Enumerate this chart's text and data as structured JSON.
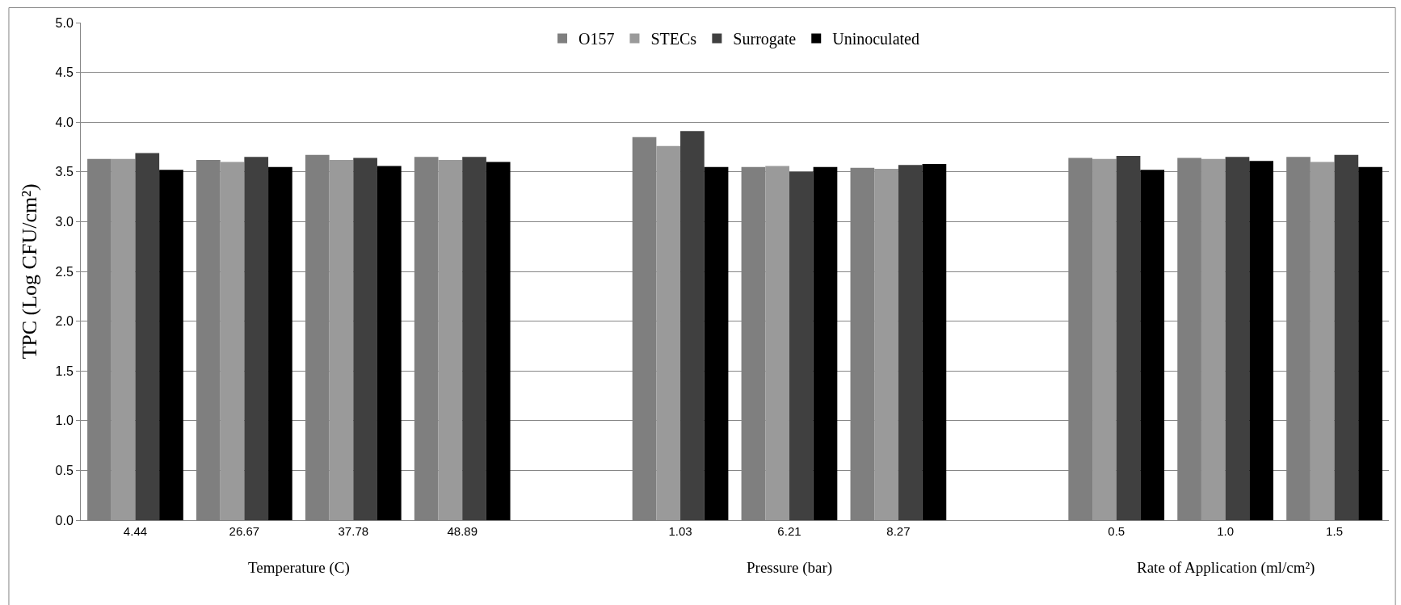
{
  "chart_data": {
    "type": "bar",
    "ylabel": "TPC (Log CFU/cm²)",
    "categories": [
      "4.44",
      "26.67",
      "37.78",
      "48.89",
      null,
      "1.03",
      "6.21",
      "8.27",
      null,
      "0.5",
      "1.0",
      "1.5"
    ],
    "series": [
      {
        "name": "O157",
        "color": "#7f7f7f",
        "values": [
          3.63,
          3.62,
          3.67,
          3.65,
          null,
          3.85,
          3.55,
          3.54,
          null,
          3.64,
          3.64,
          3.65
        ]
      },
      {
        "name": "STECs",
        "color": "#9a9a9a",
        "values": [
          3.63,
          3.6,
          3.62,
          3.62,
          null,
          3.76,
          3.56,
          3.53,
          null,
          3.63,
          3.63,
          3.6
        ]
      },
      {
        "name": "Surrogate",
        "color": "#404040",
        "values": [
          3.69,
          3.65,
          3.64,
          3.65,
          null,
          3.91,
          3.5,
          3.57,
          null,
          3.66,
          3.65,
          3.67
        ]
      },
      {
        "name": "Uninoculated",
        "color": "#000000",
        "values": [
          3.52,
          3.55,
          3.56,
          3.6,
          null,
          3.55,
          3.55,
          3.58,
          null,
          3.52,
          3.61,
          3.55
        ]
      }
    ],
    "annotations": [
      "Temperature (C)",
      "Pressure (bar)",
      "Rate of Application (ml/cm²)"
    ],
    "ylim": [
      0,
      5
    ],
    "yticks": [
      {
        "value": 0,
        "label": "0.0"
      },
      0.5,
      {
        "value": 1,
        "label": "1.0"
      },
      1.5,
      {
        "value": 2,
        "label": "2.0"
      },
      2.5,
      {
        "value": 3,
        "label": "3.0"
      },
      3.5,
      {
        "value": 4,
        "label": "4.0"
      },
      4.5,
      {
        "value": 5,
        "label": "5.0"
      }
    ],
    "grid": "y",
    "legend": "top"
  }
}
